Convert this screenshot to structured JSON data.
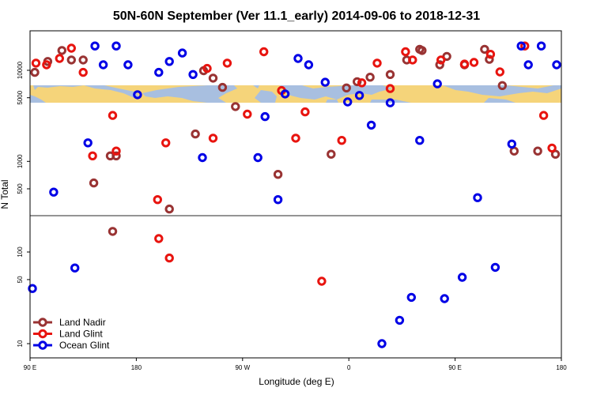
{
  "chart_data": {
    "type": "scatter",
    "title": "50N-60N September (Ver 11.1_early)   2014-09-06 to 2018-12-31",
    "xlabel": "Longitude (deg E)",
    "ylabel": "N Total",
    "x_ticks": [
      {
        "value": 90,
        "label": "90 E"
      },
      {
        "value": 180,
        "label": "180"
      },
      {
        "value": 270,
        "label": "90 W"
      },
      {
        "value": 360,
        "label": "0"
      },
      {
        "value": 450,
        "label": "90 E"
      },
      {
        "value": 540,
        "label": "180"
      }
    ],
    "xlim": [
      90,
      540
    ],
    "y_scale": "log",
    "y_ticks_upper": [
      500,
      1000,
      5000,
      10000
    ],
    "y_ticks_lower": [
      10,
      50,
      100
    ],
    "colors": {
      "land_nadir": "#993333",
      "land_glint": "#e8140f",
      "ocean_glint": "#0000e6",
      "map_ocean": "#a8bfe0",
      "map_land": "#f5d47a",
      "separator": "#555555"
    },
    "legend_position": "bottom-left",
    "series": [
      {
        "name": "Land Nadir",
        "key": "land_nadir",
        "points": [
          [
            94,
            9500
          ],
          [
            105,
            12500
          ],
          [
            117,
            16500
          ],
          [
            125,
            13000
          ],
          [
            135,
            13000
          ],
          [
            144,
            580
          ],
          [
            158,
            1150
          ],
          [
            160,
            168
          ],
          [
            163,
            1150
          ],
          [
            208,
            300
          ],
          [
            230,
            2000
          ],
          [
            237,
            9900
          ],
          [
            245,
            8200
          ],
          [
            253,
            6500
          ],
          [
            264,
            4000
          ],
          [
            300,
            720
          ],
          [
            345,
            1200
          ],
          [
            358,
            6400
          ],
          [
            367,
            7500
          ],
          [
            378,
            8400
          ],
          [
            395,
            9000
          ],
          [
            409,
            13000
          ],
          [
            420,
            17000
          ],
          [
            422,
            16500
          ],
          [
            437,
            11500
          ],
          [
            443,
            14200
          ],
          [
            458,
            11500
          ],
          [
            475,
            17000
          ],
          [
            479,
            13200
          ],
          [
            490,
            6800
          ],
          [
            500,
            1300
          ],
          [
            520,
            1300
          ],
          [
            535,
            1200
          ]
        ]
      },
      {
        "name": "Land Glint",
        "key": "land_glint",
        "points": [
          [
            95,
            12000
          ],
          [
            104,
            11500
          ],
          [
            115,
            13500
          ],
          [
            125,
            17500
          ],
          [
            135,
            9500
          ],
          [
            143,
            1150
          ],
          [
            160,
            3200
          ],
          [
            163,
            1300
          ],
          [
            198,
            380
          ],
          [
            199,
            140
          ],
          [
            205,
            1600
          ],
          [
            208,
            86
          ],
          [
            240,
            10500
          ],
          [
            245,
            1800
          ],
          [
            257,
            12000
          ],
          [
            274,
            3300
          ],
          [
            288,
            16000
          ],
          [
            303,
            6000
          ],
          [
            315,
            1800
          ],
          [
            323,
            3500
          ],
          [
            337,
            48
          ],
          [
            354,
            1700
          ],
          [
            371,
            7300
          ],
          [
            384,
            12000
          ],
          [
            395,
            6300
          ],
          [
            408,
            16000
          ],
          [
            414,
            13000
          ],
          [
            438,
            13000
          ],
          [
            458,
            11700
          ],
          [
            466,
            12200
          ],
          [
            480,
            15000
          ],
          [
            488,
            9600
          ],
          [
            509,
            18500
          ],
          [
            525,
            3200
          ],
          [
            532,
            1400
          ]
        ]
      },
      {
        "name": "Ocean Glint",
        "key": "ocean_glint",
        "points": [
          [
            92,
            40
          ],
          [
            110,
            460
          ],
          [
            128,
            67
          ],
          [
            139,
            1600
          ],
          [
            145,
            18500
          ],
          [
            152,
            11500
          ],
          [
            163,
            18500
          ],
          [
            173,
            11500
          ],
          [
            181,
            5400
          ],
          [
            199,
            9500
          ],
          [
            208,
            12500
          ],
          [
            219,
            15500
          ],
          [
            228,
            9000
          ],
          [
            236,
            1100
          ],
          [
            283,
            1100
          ],
          [
            289,
            3100
          ],
          [
            300,
            380
          ],
          [
            306,
            5500
          ],
          [
            317,
            13500
          ],
          [
            326,
            11500
          ],
          [
            340,
            7400
          ],
          [
            359,
            4500
          ],
          [
            369,
            5300
          ],
          [
            379,
            2500
          ],
          [
            388,
            10
          ],
          [
            395,
            4400
          ],
          [
            403,
            18
          ],
          [
            413,
            32
          ],
          [
            420,
            1700
          ],
          [
            435,
            7100
          ],
          [
            441,
            31
          ],
          [
            456,
            53
          ],
          [
            469,
            400
          ],
          [
            484,
            68
          ],
          [
            498,
            1550
          ],
          [
            506,
            18500
          ],
          [
            512,
            11500
          ],
          [
            523,
            18500
          ],
          [
            536,
            11500
          ]
        ]
      }
    ]
  }
}
